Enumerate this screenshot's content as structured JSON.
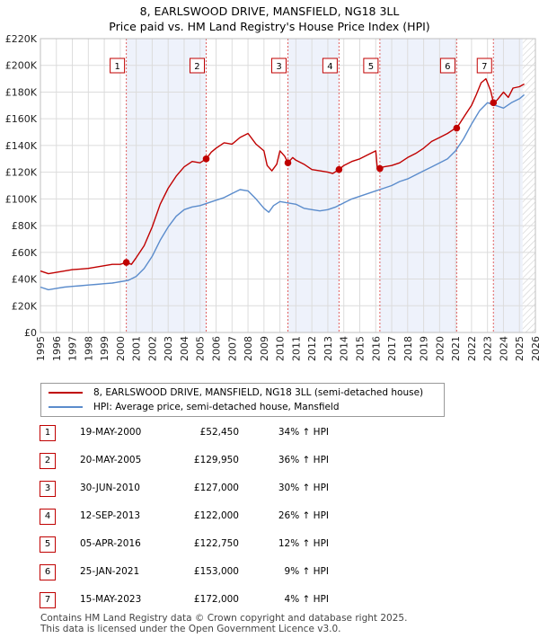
{
  "title_line1": "8, EARLSWOOD DRIVE, MANSFIELD, NG18 3LL",
  "title_line2": "Price paid vs. HM Land Registry's House Price Index (HPI)",
  "colors": {
    "property": "#c00000",
    "hpi": "#5b8ccc",
    "shade": "#eef2fb",
    "marker": "#c00000"
  },
  "chart_data": {
    "type": "line",
    "ylim": [
      0,
      220000
    ],
    "xlim": [
      1995,
      2026
    ],
    "y_ticks": [
      {
        "value": 0,
        "label": "£0"
      },
      {
        "value": 20000,
        "label": "£20K"
      },
      {
        "value": 40000,
        "label": "£40K"
      },
      {
        "value": 60000,
        "label": "£60K"
      },
      {
        "value": 80000,
        "label": "£80K"
      },
      {
        "value": 100000,
        "label": "£100K"
      },
      {
        "value": 120000,
        "label": "£120K"
      },
      {
        "value": 140000,
        "label": "£140K"
      },
      {
        "value": 160000,
        "label": "£160K"
      },
      {
        "value": 180000,
        "label": "£180K"
      },
      {
        "value": 200000,
        "label": "£200K"
      },
      {
        "value": 220000,
        "label": "£220K"
      }
    ],
    "x_ticks": [
      "1995",
      "1996",
      "1997",
      "1998",
      "1999",
      "2000",
      "2001",
      "2002",
      "2003",
      "2004",
      "2005",
      "2006",
      "2007",
      "2008",
      "2009",
      "2010",
      "2011",
      "2012",
      "2013",
      "2014",
      "2015",
      "2016",
      "2017",
      "2018",
      "2019",
      "2020",
      "2021",
      "2022",
      "2023",
      "2024",
      "2025",
      "2026"
    ],
    "shaded_spans": [
      [
        2000.38,
        2005.38
      ],
      [
        2010.5,
        2013.7
      ],
      [
        2016.26,
        2021.07
      ],
      [
        2023.37,
        2025.2
      ]
    ],
    "series": [
      {
        "name": "8, EARLSWOOD DRIVE, MANSFIELD, NG18 3LL (semi-detached house)",
        "x": [
          1995,
          1995.5,
          1996,
          1996.5,
          1997,
          1997.5,
          1998,
          1998.5,
          1999,
          1999.5,
          2000,
          2000.38,
          2000.7,
          2001,
          2001.5,
          2002,
          2002.5,
          2003,
          2003.5,
          2004,
          2004.5,
          2005,
          2005.38,
          2005.7,
          2006,
          2006.5,
          2007,
          2007.5,
          2008,
          2008.5,
          2009,
          2009.2,
          2009.5,
          2009.8,
          2010,
          2010.3,
          2010.5,
          2010.8,
          2011,
          2011.5,
          2012,
          2012.5,
          2013,
          2013.3,
          2013.7,
          2014,
          2014.5,
          2015,
          2015.5,
          2016,
          2016.1,
          2016.26,
          2016.5,
          2017,
          2017.5,
          2018,
          2018.5,
          2019,
          2019.5,
          2020,
          2020.5,
          2021,
          2021.07,
          2021.5,
          2022,
          2022.3,
          2022.6,
          2022.9,
          2023,
          2023.2,
          2023.37,
          2023.6,
          2024,
          2024.3,
          2024.6,
          2025,
          2025.3
        ],
        "values": [
          46000,
          44000,
          45000,
          46000,
          47000,
          47500,
          48000,
          49000,
          50000,
          51000,
          51000,
          52450,
          51000,
          56000,
          65000,
          79000,
          96000,
          108000,
          117000,
          124000,
          128000,
          127000,
          129950,
          135000,
          138000,
          142000,
          141000,
          146000,
          149000,
          141000,
          136000,
          125000,
          121000,
          126000,
          136000,
          132000,
          127000,
          131000,
          129000,
          126000,
          122000,
          121000,
          120000,
          119000,
          122000,
          125000,
          128000,
          130000,
          133000,
          136000,
          123000,
          122750,
          124000,
          125000,
          127000,
          131000,
          134000,
          138000,
          143000,
          146000,
          149000,
          153000,
          153000,
          161000,
          170000,
          178000,
          187000,
          190000,
          187000,
          181000,
          172000,
          174000,
          180000,
          176000,
          183000,
          184000,
          186000
        ]
      },
      {
        "name": "HPI: Average price, semi-detached house, Mansfield",
        "x": [
          1995,
          1995.5,
          1996,
          1996.5,
          1997,
          1997.5,
          1998,
          1998.5,
          1999,
          1999.5,
          2000,
          2000.5,
          2001,
          2001.5,
          2002,
          2002.5,
          2003,
          2003.5,
          2004,
          2004.5,
          2005,
          2005.5,
          2006,
          2006.5,
          2007,
          2007.5,
          2008,
          2008.5,
          2009,
          2009.3,
          2009.6,
          2010,
          2010.5,
          2011,
          2011.5,
          2012,
          2012.5,
          2013,
          2013.5,
          2014,
          2014.5,
          2015,
          2015.5,
          2016,
          2016.5,
          2017,
          2017.5,
          2018,
          2018.5,
          2019,
          2019.5,
          2020,
          2020.5,
          2021,
          2021.5,
          2022,
          2022.5,
          2023,
          2023.5,
          2024,
          2024.5,
          2025,
          2025.3
        ],
        "values": [
          34000,
          32000,
          33000,
          34000,
          34500,
          35000,
          35500,
          36000,
          36500,
          37000,
          38000,
          39000,
          42000,
          48000,
          57000,
          69000,
          79000,
          87000,
          92000,
          94000,
          95000,
          97000,
          99000,
          101000,
          104000,
          107000,
          106000,
          100000,
          93000,
          90000,
          95000,
          98000,
          97000,
          96000,
          93000,
          92000,
          91000,
          92000,
          94000,
          97000,
          100000,
          102000,
          104000,
          106000,
          108000,
          110000,
          113000,
          115000,
          118000,
          121000,
          124000,
          127000,
          130000,
          136000,
          145000,
          156000,
          166000,
          172000,
          170000,
          168000,
          172000,
          175000,
          178000
        ]
      }
    ],
    "sales": [
      {
        "num": "1",
        "x": 2000.38,
        "price": 52450
      },
      {
        "num": "2",
        "x": 2005.38,
        "price": 129950
      },
      {
        "num": "3",
        "x": 2010.5,
        "price": 127000
      },
      {
        "num": "4",
        "x": 2013.7,
        "price": 122000
      },
      {
        "num": "5",
        "x": 2016.26,
        "price": 122750
      },
      {
        "num": "6",
        "x": 2021.07,
        "price": 153000
      },
      {
        "num": "7",
        "x": 2023.37,
        "price": 172000
      }
    ]
  },
  "legend": {
    "property_label": "8, EARLSWOOD DRIVE, MANSFIELD, NG18 3LL (semi-detached house)",
    "hpi_label": "HPI: Average price, semi-detached house, Mansfield"
  },
  "sales_table": [
    {
      "num": "1",
      "date": "19-MAY-2000",
      "price": "£52,450",
      "hpi": "34% ↑ HPI"
    },
    {
      "num": "2",
      "date": "20-MAY-2005",
      "price": "£129,950",
      "hpi": "36% ↑ HPI"
    },
    {
      "num": "3",
      "date": "30-JUN-2010",
      "price": "£127,000",
      "hpi": "30% ↑ HPI"
    },
    {
      "num": "4",
      "date": "12-SEP-2013",
      "price": "£122,000",
      "hpi": "26% ↑ HPI"
    },
    {
      "num": "5",
      "date": "05-APR-2016",
      "price": "£122,750",
      "hpi": "12% ↑ HPI"
    },
    {
      "num": "6",
      "date": "25-JAN-2021",
      "price": "£153,000",
      "hpi": "9% ↑ HPI"
    },
    {
      "num": "7",
      "date": "15-MAY-2023",
      "price": "£172,000",
      "hpi": "4% ↑ HPI"
    }
  ],
  "footer": {
    "line1": "Contains HM Land Registry data © Crown copyright and database right 2025.",
    "line2": "This data is licensed under the Open Government Licence v3.0."
  }
}
